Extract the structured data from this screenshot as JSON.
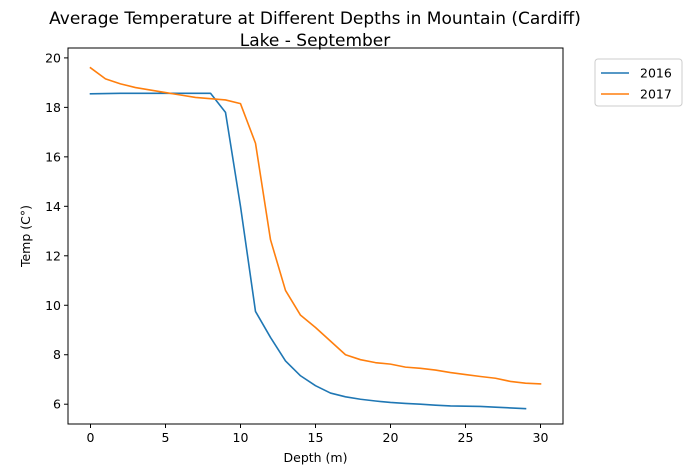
{
  "chart_data": {
    "type": "line",
    "title": "Average Temperature at Different Depths in Mountain (Cardiff)\nLake - September",
    "xlabel": "Depth (m)",
    "ylabel": "Temp (C°)",
    "xlim": [
      -1.5,
      31.5
    ],
    "ylim": [
      5.2,
      20.4
    ],
    "xticks": [
      0,
      5,
      10,
      15,
      20,
      25,
      30
    ],
    "yticks": [
      6,
      8,
      10,
      12,
      14,
      16,
      18,
      20
    ],
    "grid": false,
    "legend_position": "outside-top-right",
    "series": [
      {
        "name": "2016",
        "color": "#1f77b4",
        "x": [
          0,
          1,
          2,
          3,
          4,
          5,
          6,
          7,
          8,
          9,
          10,
          11,
          12,
          13,
          14,
          15,
          16,
          17,
          18,
          19,
          20,
          21,
          22,
          23,
          24,
          25,
          26,
          27,
          28,
          29
        ],
        "y": [
          18.55,
          18.56,
          18.57,
          18.57,
          18.57,
          18.57,
          18.57,
          18.57,
          18.57,
          17.8,
          14.0,
          9.75,
          8.7,
          7.75,
          7.15,
          6.75,
          6.45,
          6.3,
          6.2,
          6.13,
          6.07,
          6.03,
          6.0,
          5.96,
          5.93,
          5.92,
          5.91,
          5.88,
          5.85,
          5.82
        ]
      },
      {
        "name": "2017",
        "color": "#ff7f0e",
        "x": [
          0,
          1,
          2,
          3,
          4,
          5,
          6,
          7,
          8,
          9,
          10,
          11,
          12,
          13,
          14,
          15,
          16,
          17,
          18,
          19,
          20,
          21,
          22,
          23,
          24,
          25,
          26,
          27,
          28,
          29,
          30
        ],
        "y": [
          19.6,
          19.15,
          18.95,
          18.8,
          18.7,
          18.6,
          18.5,
          18.4,
          18.35,
          18.3,
          18.15,
          16.55,
          12.65,
          10.6,
          9.6,
          9.1,
          8.55,
          8.0,
          7.8,
          7.68,
          7.62,
          7.5,
          7.45,
          7.38,
          7.28,
          7.2,
          7.12,
          7.05,
          6.92,
          6.85,
          6.82
        ]
      }
    ]
  }
}
